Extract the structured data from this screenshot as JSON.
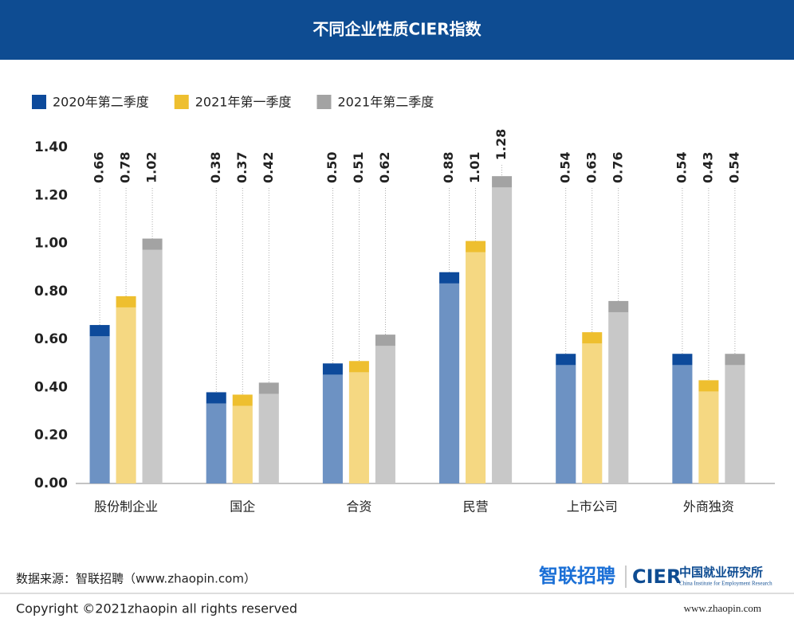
{
  "chart_data": {
    "type": "bar",
    "title": "不同企业性质CIER指数",
    "categories": [
      "股份制企业",
      "国企",
      "合资",
      "民营",
      "上市公司",
      "外商独资"
    ],
    "series": [
      {
        "name": "2020年第二季度",
        "color": "#0d4a9b",
        "values": [
          0.66,
          0.38,
          0.5,
          0.88,
          0.54,
          0.54
        ],
        "value_labels": [
          "0.66",
          "0.38",
          "0.50",
          "0.88",
          "0.54",
          "0.54"
        ]
      },
      {
        "name": "2021年第一季度",
        "color": "#eebf2f",
        "values": [
          0.78,
          0.37,
          0.51,
          1.01,
          0.63,
          0.43
        ],
        "value_labels": [
          "0.78",
          "0.37",
          "0.51",
          "1.01",
          "0.63",
          "0.43"
        ]
      },
      {
        "name": "2021年第二季度",
        "color": "#a3a3a3",
        "values": [
          1.02,
          0.42,
          0.62,
          1.28,
          0.76,
          0.54
        ],
        "value_labels": [
          "1.02",
          "0.42",
          "0.62",
          "1.28",
          "0.76",
          "0.54"
        ]
      }
    ],
    "ylim": [
      0,
      1.4
    ],
    "yticks": [
      {
        "value": 0,
        "label": "0.00"
      },
      {
        "value": 0.2,
        "label": "0.20"
      },
      {
        "value": 0.4,
        "label": "0.40"
      },
      {
        "value": 0.6,
        "label": "0.60"
      },
      {
        "value": 0.8,
        "label": "0.80"
      },
      {
        "value": 1,
        "label": "1.00"
      },
      {
        "value": 1.2,
        "label": "1.20"
      },
      {
        "value": 1.4,
        "label": "1.40"
      }
    ],
    "legend": "top-left",
    "grid": false
  },
  "footer": {
    "source": "数据来源：智联招聘（www.zhaopin.com）",
    "copyright": "Copyright ©2021zhaopin all rights reserved",
    "logo": "智联招聘",
    "cier": "CIER",
    "cier_cn": "中国就业研究所",
    "cier_en": "China Institute for Employment Research",
    "url": "www.zhaopin.com"
  }
}
